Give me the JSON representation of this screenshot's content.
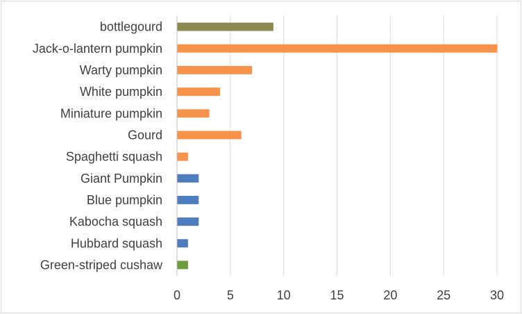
{
  "chart_data": {
    "type": "bar",
    "orientation": "horizontal",
    "categories": [
      "bottlegourd",
      "Jack-o-lantern pumpkin",
      "Warty pumpkin",
      "White pumpkin",
      "Miniature pumpkin",
      "Gourd",
      "Spaghetti squash",
      "Giant Pumpkin",
      "Blue pumpkin",
      "Kabocha squash",
      "Hubbard squash",
      "Green-striped cushaw"
    ],
    "values": [
      9,
      30,
      7,
      4,
      3,
      6,
      1,
      2,
      2,
      2,
      1,
      1
    ],
    "bar_colors": [
      "#8c8a50",
      "#f7934a",
      "#f7934a",
      "#f7934a",
      "#f7934a",
      "#f7934a",
      "#f7934a",
      "#4d7cbf",
      "#4d7cbf",
      "#4d7cbf",
      "#4d7cbf",
      "#6e9c3c"
    ],
    "x_ticks": [
      "0",
      "5",
      "10",
      "15",
      "20",
      "25",
      "30"
    ],
    "xlim": [
      0,
      30
    ],
    "grid": true,
    "legend": "none",
    "title": "",
    "xlabel": "",
    "ylabel": ""
  },
  "colors": {
    "gridline": "#d9d9d9",
    "axis": "#bfbfbf",
    "text": "#404040"
  }
}
